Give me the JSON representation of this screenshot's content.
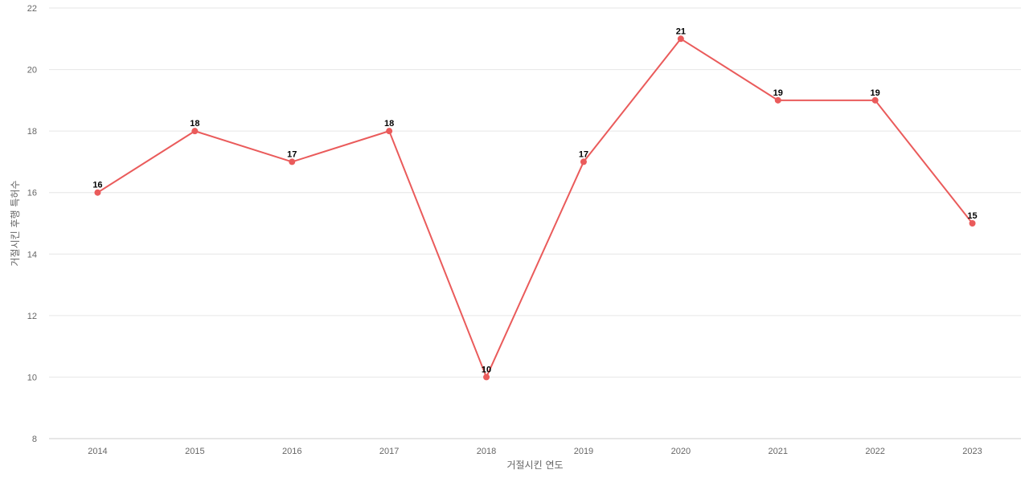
{
  "chart_data": {
    "type": "line",
    "title": "",
    "xlabel": "거절시킨 연도",
    "ylabel": "거절시킨 후행 특허수",
    "x": [
      "2014",
      "2015",
      "2016",
      "2017",
      "2018",
      "2019",
      "2020",
      "2021",
      "2022",
      "2023"
    ],
    "series": [
      {
        "values": [
          16,
          18,
          17,
          18,
          10,
          17,
          21,
          19,
          19,
          15
        ]
      }
    ],
    "ylim": [
      8,
      22
    ],
    "yticks": [
      8,
      10,
      12,
      14,
      16,
      18,
      20,
      22
    ],
    "grid": true,
    "legend": "none",
    "line_color": "#ea5b5b"
  }
}
